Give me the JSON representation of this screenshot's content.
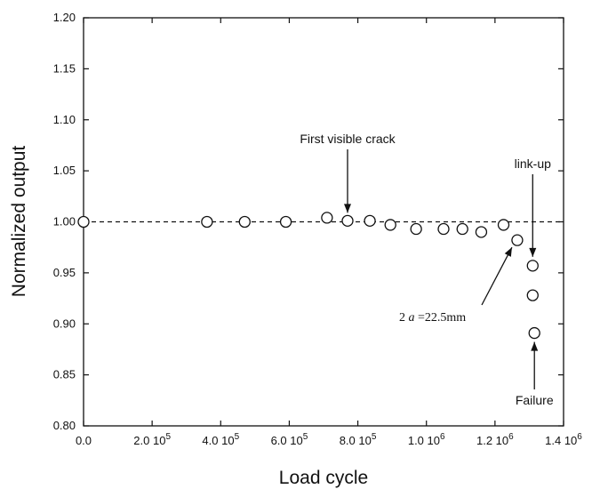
{
  "chart_data": {
    "type": "scatter",
    "xlabel": "Load cycle",
    "ylabel": "Normalized output",
    "xlim": [
      0,
      1400000
    ],
    "ylim": [
      0.8,
      1.2
    ],
    "x_tick_labels": [
      "0.0",
      "2.0 10",
      "4.0 10",
      "6.0 10",
      "8.0 10",
      "1.0 10",
      "1.2 10",
      "1.4 10"
    ],
    "x_tick_exponents": [
      "",
      "5",
      "5",
      "5",
      "5",
      "6",
      "6",
      "6"
    ],
    "x_ticks": [
      0,
      200000,
      400000,
      600000,
      800000,
      1000000,
      1200000,
      1400000
    ],
    "y_ticks": [
      0.8,
      0.85,
      0.9,
      0.95,
      1.0,
      1.05,
      1.1,
      1.15,
      1.2
    ],
    "y_tick_labels": [
      "0.80",
      "0.85",
      "0.90",
      "0.95",
      "1.00",
      "1.05",
      "1.10",
      "1.15",
      "1.20"
    ],
    "reference_line": {
      "y": 1.0,
      "style": "dashed"
    },
    "points": [
      {
        "x": 0,
        "y": 1.0
      },
      {
        "x": 360000,
        "y": 1.0
      },
      {
        "x": 470000,
        "y": 1.0
      },
      {
        "x": 590000,
        "y": 1.0
      },
      {
        "x": 710000,
        "y": 1.004
      },
      {
        "x": 770000,
        "y": 1.001
      },
      {
        "x": 835000,
        "y": 1.001
      },
      {
        "x": 895000,
        "y": 0.997
      },
      {
        "x": 970000,
        "y": 0.993
      },
      {
        "x": 1050000,
        "y": 0.993
      },
      {
        "x": 1105000,
        "y": 0.993
      },
      {
        "x": 1160000,
        "y": 0.99
      },
      {
        "x": 1225000,
        "y": 0.997
      },
      {
        "x": 1265000,
        "y": 0.982
      },
      {
        "x": 1310000,
        "y": 0.957
      },
      {
        "x": 1310000,
        "y": 0.928
      },
      {
        "x": 1315000,
        "y": 0.891
      }
    ],
    "annotations": [
      {
        "text": "First visible crack",
        "target": {
          "x": 770000,
          "y": 1.001
        }
      },
      {
        "text": "link-up",
        "target": {
          "x": 1310000,
          "y": 0.957
        }
      },
      {
        "text_prefix": "2",
        "text_var": "a",
        "text_suffix": " =22.5mm",
        "target": {
          "x": 1265000,
          "y": 0.982
        }
      },
      {
        "text": "Failure",
        "target": {
          "x": 1315000,
          "y": 0.891
        }
      }
    ],
    "grid": false
  }
}
